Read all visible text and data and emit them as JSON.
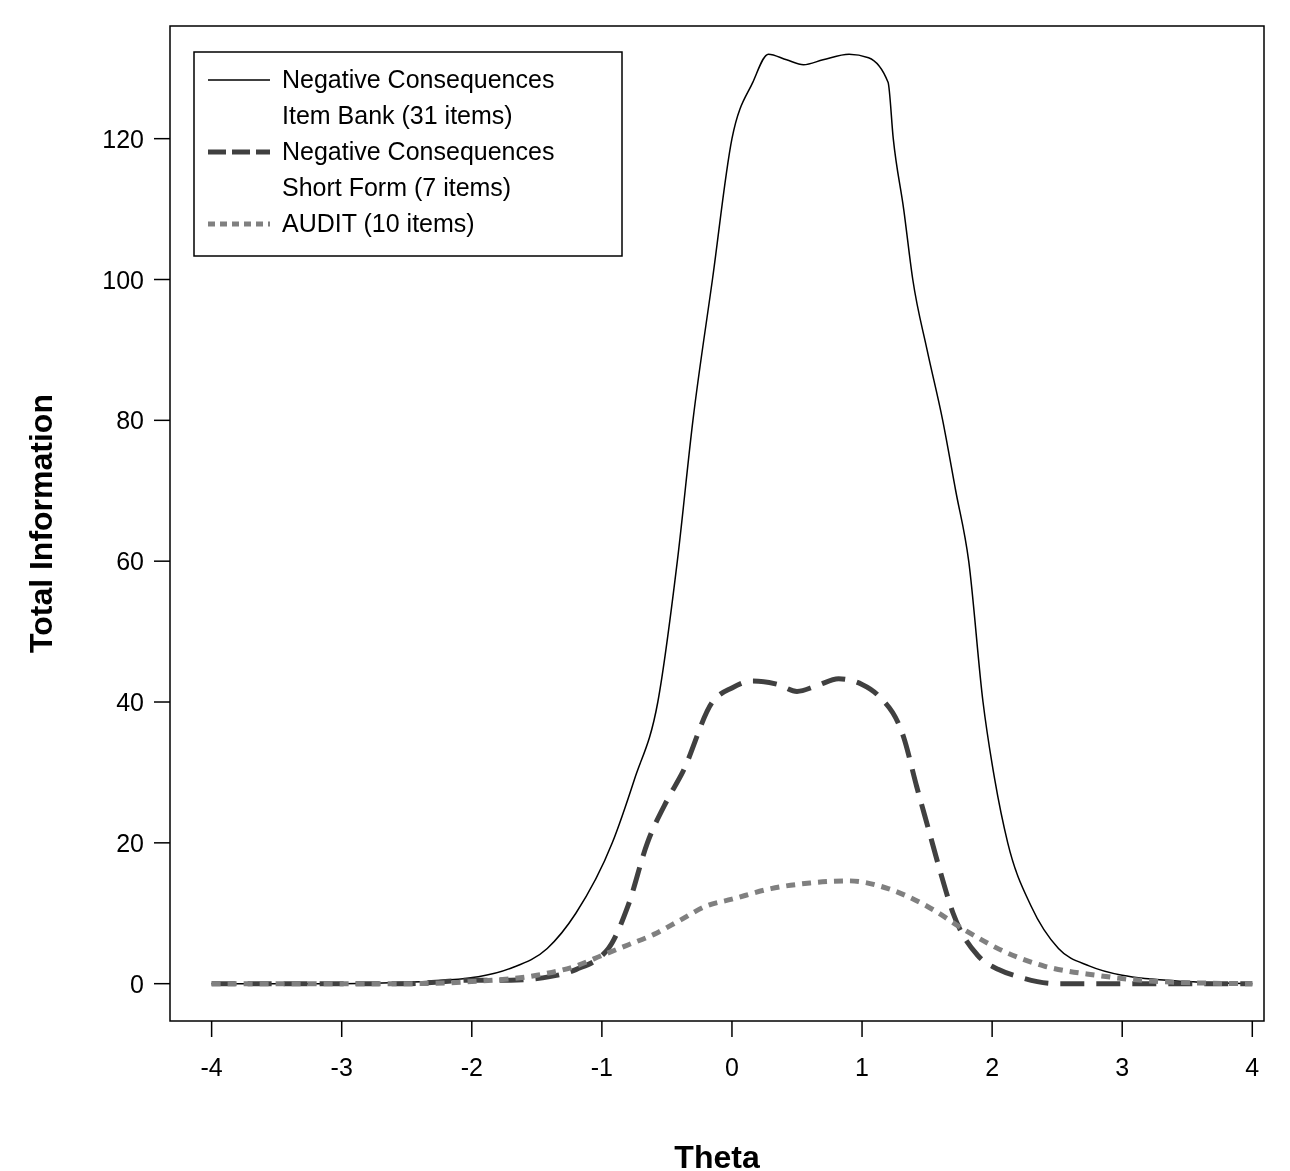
{
  "chart_data": {
    "type": "line",
    "xlabel": "Theta",
    "ylabel": "Total Information",
    "xlim": [
      -4.32,
      4.09
    ],
    "ylim": [
      -5.3,
      136
    ],
    "xticks": [
      -4,
      -3,
      -2,
      -1,
      0,
      1,
      2,
      3,
      4
    ],
    "yticks": [
      0,
      20,
      40,
      60,
      80,
      100,
      120
    ],
    "legend": "top left",
    "series": [
      {
        "name": "Negative Consequences Item Bank (31 items)",
        "color": "#000000",
        "line_style": "solid",
        "x": [
          -4,
          -3,
          -2.5,
          -1.95,
          -1.7,
          -1.42,
          -1.2,
          -0.92,
          -0.75,
          -0.57,
          -0.42,
          -0.3,
          -0.15,
          0,
          0.16,
          0.28,
          0.42,
          0.55,
          0.7,
          0.9,
          1.05,
          1.2,
          1.24,
          1.32,
          1.39,
          1.5,
          1.62,
          1.72,
          1.82,
          1.93,
          2.02,
          2.12,
          2.3,
          2.51,
          2.75,
          3,
          3.5,
          4
        ],
        "values": [
          0,
          0,
          0.2,
          1,
          2.2,
          5,
          10,
          20,
          29,
          40,
          60,
          80,
          100,
          120,
          128,
          132,
          131.2,
          130.5,
          131.2,
          132,
          131.5,
          128,
          120,
          110,
          100,
          90,
          80,
          70,
          60,
          40,
          29,
          20,
          11,
          5,
          2.5,
          1.2,
          0.3,
          0
        ]
      },
      {
        "name": "Negative Consequences Short Form (7 items)",
        "color": "#404040",
        "line_style": "dashed",
        "x": [
          -4,
          -2.5,
          -2,
          -1.7,
          -1.4,
          -1.2,
          -0.95,
          -0.8,
          -0.65,
          -0.5,
          -0.38,
          -0.15,
          0,
          0.16,
          0.35,
          0.5,
          0.65,
          0.82,
          1,
          1.12,
          1.32,
          1.42,
          1.51,
          1.6,
          1.7,
          1.89,
          2.05,
          2.2,
          2.5,
          3,
          4
        ],
        "values": [
          0,
          0,
          0.5,
          0.5,
          1,
          2,
          5,
          11,
          20,
          26,
          30,
          40,
          42,
          43,
          42.5,
          41.5,
          42.3,
          43.3,
          42.5,
          41,
          35,
          28,
          22,
          16,
          10,
          4,
          2,
          1,
          0,
          0,
          0
        ]
      },
      {
        "name": "AUDIT (10 items)",
        "color": "#808080",
        "line_style": "dotted",
        "x": [
          -4,
          -2.5,
          -2,
          -1.5,
          -1.2,
          -1,
          -0.8,
          -0.6,
          -0.4,
          -0.2,
          0,
          0.3,
          0.6,
          0.9,
          1.2,
          1.5,
          1.8,
          2.1,
          2.4,
          2.8,
          3.2,
          3.6,
          4
        ],
        "values": [
          0,
          0,
          0.3,
          1.2,
          2.5,
          4,
          5.5,
          7,
          9,
          11,
          12,
          13.5,
          14.3,
          14.6,
          13.5,
          11,
          7.5,
          4.5,
          2.5,
          1.2,
          0.4,
          0.1,
          0
        ]
      }
    ]
  }
}
